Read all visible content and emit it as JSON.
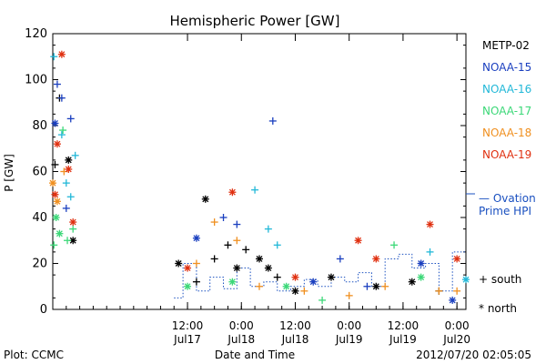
{
  "chart_data": {
    "type": "scatter",
    "title": "Hemispheric Power [GW]",
    "ylabel": "P [GW]",
    "xlabel": "Date and Time",
    "ylim": [
      0,
      120
    ],
    "yticks": [
      0,
      20,
      40,
      60,
      80,
      100,
      120
    ],
    "xlim": [
      "2012-07-16T06:00",
      "2012-07-20T02:00"
    ],
    "xticks": [
      {
        "t": "2012-07-17T12:00",
        "time": "12:00",
        "date": "Jul17"
      },
      {
        "t": "2012-07-18T00:00",
        "time": "0:00",
        "date": "Jul18"
      },
      {
        "t": "2012-07-18T12:00",
        "time": "12:00",
        "date": "Jul18"
      },
      {
        "t": "2012-07-19T00:00",
        "time": "0:00",
        "date": "Jul19"
      },
      {
        "t": "2012-07-19T12:00",
        "time": "12:00",
        "date": "Jul19"
      },
      {
        "t": "2012-07-20T00:00",
        "time": "0:00",
        "date": "Jul20"
      }
    ],
    "series": [
      {
        "name": "METP-02",
        "color": "#000000",
        "points": [
          {
            "t": "2012-07-16T06:30",
            "y": 63,
            "m": "+"
          },
          {
            "t": "2012-07-16T07:30",
            "y": 92,
            "m": "+"
          },
          {
            "t": "2012-07-16T09:30",
            "y": 65,
            "m": "*"
          },
          {
            "t": "2012-07-16T10:30",
            "y": 30,
            "m": "*"
          },
          {
            "t": "2012-07-17T10:00",
            "y": 20,
            "m": "*"
          },
          {
            "t": "2012-07-17T14:00",
            "y": 12,
            "m": "+"
          },
          {
            "t": "2012-07-17T16:00",
            "y": 48,
            "m": "*"
          },
          {
            "t": "2012-07-17T18:00",
            "y": 22,
            "m": "+"
          },
          {
            "t": "2012-07-17T21:00",
            "y": 28,
            "m": "+"
          },
          {
            "t": "2012-07-17T23:00",
            "y": 18,
            "m": "*"
          },
          {
            "t": "2012-07-18T01:00",
            "y": 26,
            "m": "+"
          },
          {
            "t": "2012-07-18T04:00",
            "y": 22,
            "m": "*"
          },
          {
            "t": "2012-07-18T06:00",
            "y": 18,
            "m": "*"
          },
          {
            "t": "2012-07-18T08:00",
            "y": 14,
            "m": "+"
          },
          {
            "t": "2012-07-18T12:00",
            "y": 8,
            "m": "*"
          },
          {
            "t": "2012-07-18T20:00",
            "y": 14,
            "m": "*"
          },
          {
            "t": "2012-07-19T06:00",
            "y": 10,
            "m": "*"
          },
          {
            "t": "2012-07-19T14:00",
            "y": 12,
            "m": "*"
          },
          {
            "t": "2012-07-19T20:00",
            "y": 8,
            "m": "+"
          }
        ]
      },
      {
        "name": "NOAA-15",
        "color": "#1a3fbf",
        "points": [
          {
            "t": "2012-07-16T06:30",
            "y": 81,
            "m": "*"
          },
          {
            "t": "2012-07-16T07:00",
            "y": 98,
            "m": "+"
          },
          {
            "t": "2012-07-16T08:00",
            "y": 92,
            "m": "+"
          },
          {
            "t": "2012-07-16T10:00",
            "y": 83,
            "m": "+"
          },
          {
            "t": "2012-07-16T09:00",
            "y": 44,
            "m": "+"
          },
          {
            "t": "2012-07-17T14:00",
            "y": 31,
            "m": "*"
          },
          {
            "t": "2012-07-17T20:00",
            "y": 40,
            "m": "+"
          },
          {
            "t": "2012-07-17T23:00",
            "y": 37,
            "m": "+"
          },
          {
            "t": "2012-07-18T07:00",
            "y": 82,
            "m": "+"
          },
          {
            "t": "2012-07-18T16:00",
            "y": 12,
            "m": "*"
          },
          {
            "t": "2012-07-18T22:00",
            "y": 22,
            "m": "+"
          },
          {
            "t": "2012-07-19T04:00",
            "y": 10,
            "m": "+"
          },
          {
            "t": "2012-07-19T16:00",
            "y": 20,
            "m": "*"
          },
          {
            "t": "2012-07-19T23:00",
            "y": 4,
            "m": "*"
          }
        ]
      },
      {
        "name": "NOAA-16",
        "color": "#22b8d8",
        "points": [
          {
            "t": "2012-07-16T06:15",
            "y": 110,
            "m": "+"
          },
          {
            "t": "2012-07-16T08:00",
            "y": 76,
            "m": "+"
          },
          {
            "t": "2012-07-16T09:00",
            "y": 55,
            "m": "+"
          },
          {
            "t": "2012-07-16T10:00",
            "y": 49,
            "m": "+"
          },
          {
            "t": "2012-07-16T11:00",
            "y": 67,
            "m": "+"
          },
          {
            "t": "2012-07-18T03:00",
            "y": 52,
            "m": "+"
          },
          {
            "t": "2012-07-18T06:00",
            "y": 35,
            "m": "+"
          },
          {
            "t": "2012-07-18T08:00",
            "y": 28,
            "m": "+"
          },
          {
            "t": "2012-07-19T18:00",
            "y": 25,
            "m": "+"
          },
          {
            "t": "2012-07-20T02:00",
            "y": 13,
            "m": "*"
          }
        ]
      },
      {
        "name": "NOAA-17",
        "color": "#3cd878",
        "points": [
          {
            "t": "2012-07-16T06:15",
            "y": 28,
            "m": "+"
          },
          {
            "t": "2012-07-16T06:45",
            "y": 40,
            "m": "*"
          },
          {
            "t": "2012-07-16T07:30",
            "y": 33,
            "m": "*"
          },
          {
            "t": "2012-07-16T08:15",
            "y": 78,
            "m": "+"
          },
          {
            "t": "2012-07-16T09:15",
            "y": 30,
            "m": "+"
          },
          {
            "t": "2012-07-16T10:30",
            "y": 35,
            "m": "+"
          },
          {
            "t": "2012-07-17T12:00",
            "y": 10,
            "m": "*"
          },
          {
            "t": "2012-07-17T22:00",
            "y": 12,
            "m": "*"
          },
          {
            "t": "2012-07-18T10:00",
            "y": 10,
            "m": "*"
          },
          {
            "t": "2012-07-18T18:00",
            "y": 4,
            "m": "+"
          },
          {
            "t": "2012-07-19T10:00",
            "y": 28,
            "m": "+"
          },
          {
            "t": "2012-07-19T16:00",
            "y": 14,
            "m": "*"
          }
        ]
      },
      {
        "name": "NOAA-18",
        "color": "#f09020",
        "points": [
          {
            "t": "2012-07-16T06:00",
            "y": 55,
            "m": "*"
          },
          {
            "t": "2012-07-16T07:00",
            "y": 47,
            "m": "*"
          },
          {
            "t": "2012-07-16T08:30",
            "y": 60,
            "m": "+"
          },
          {
            "t": "2012-07-17T14:00",
            "y": 20,
            "m": "+"
          },
          {
            "t": "2012-07-17T18:00",
            "y": 38,
            "m": "+"
          },
          {
            "t": "2012-07-17T23:00",
            "y": 30,
            "m": "+"
          },
          {
            "t": "2012-07-18T04:00",
            "y": 10,
            "m": "+"
          },
          {
            "t": "2012-07-18T14:00",
            "y": 8,
            "m": "+"
          },
          {
            "t": "2012-07-19T00:00",
            "y": 6,
            "m": "+"
          },
          {
            "t": "2012-07-19T08:00",
            "y": 10,
            "m": "+"
          },
          {
            "t": "2012-07-19T20:00",
            "y": 8,
            "m": "+"
          },
          {
            "t": "2012-07-20T00:00",
            "y": 8,
            "m": "+"
          }
        ]
      },
      {
        "name": "NOAA-19",
        "color": "#e03010",
        "points": [
          {
            "t": "2012-07-16T06:30",
            "y": 50,
            "m": "*"
          },
          {
            "t": "2012-07-16T07:00",
            "y": 72,
            "m": "*"
          },
          {
            "t": "2012-07-16T08:00",
            "y": 111,
            "m": "*"
          },
          {
            "t": "2012-07-16T09:30",
            "y": 61,
            "m": "*"
          },
          {
            "t": "2012-07-16T10:30",
            "y": 38,
            "m": "*"
          },
          {
            "t": "2012-07-17T12:00",
            "y": 18,
            "m": "*"
          },
          {
            "t": "2012-07-17T22:00",
            "y": 51,
            "m": "*"
          },
          {
            "t": "2012-07-18T12:00",
            "y": 14,
            "m": "*"
          },
          {
            "t": "2012-07-19T02:00",
            "y": 30,
            "m": "*"
          },
          {
            "t": "2012-07-19T06:00",
            "y": 22,
            "m": "*"
          },
          {
            "t": "2012-07-19T18:00",
            "y": 37,
            "m": "*"
          },
          {
            "t": "2012-07-20T00:00",
            "y": 22,
            "m": "*"
          }
        ]
      }
    ],
    "ovation": {
      "name": "— Ovation Prime HPI",
      "color": "#1a50c0",
      "steps": [
        {
          "t": "2012-07-17T09:00",
          "y": 5
        },
        {
          "t": "2012-07-17T11:00",
          "y": 20
        },
        {
          "t": "2012-07-17T14:00",
          "y": 8
        },
        {
          "t": "2012-07-17T17:00",
          "y": 14
        },
        {
          "t": "2012-07-17T20:00",
          "y": 9
        },
        {
          "t": "2012-07-17T23:00",
          "y": 18
        },
        {
          "t": "2012-07-18T02:00",
          "y": 10
        },
        {
          "t": "2012-07-18T05:00",
          "y": 12
        },
        {
          "t": "2012-07-18T08:00",
          "y": 8
        },
        {
          "t": "2012-07-18T11:00",
          "y": 10
        },
        {
          "t": "2012-07-18T14:00",
          "y": 13
        },
        {
          "t": "2012-07-18T17:00",
          "y": 10
        },
        {
          "t": "2012-07-18T20:00",
          "y": 14
        },
        {
          "t": "2012-07-18T23:00",
          "y": 12
        },
        {
          "t": "2012-07-19T02:00",
          "y": 16
        },
        {
          "t": "2012-07-19T05:00",
          "y": 10
        },
        {
          "t": "2012-07-19T08:00",
          "y": 22
        },
        {
          "t": "2012-07-19T11:00",
          "y": 24
        },
        {
          "t": "2012-07-19T14:00",
          "y": 18
        },
        {
          "t": "2012-07-19T17:00",
          "y": 20
        },
        {
          "t": "2012-07-19T20:00",
          "y": 8
        },
        {
          "t": "2012-07-19T23:00",
          "y": 25
        },
        {
          "t": "2012-07-20T02:00",
          "y": 25
        }
      ]
    },
    "marker_legend": {
      "south": "+ south",
      "north": "* north"
    },
    "legend_placement": "right"
  },
  "ovation_legend": {
    "line1": "— Ovation",
    "line2": "Prime HPI"
  },
  "footer": {
    "plot_by": "Plot: CCMC",
    "timestamp": "2012/07/20 02:05:05"
  }
}
